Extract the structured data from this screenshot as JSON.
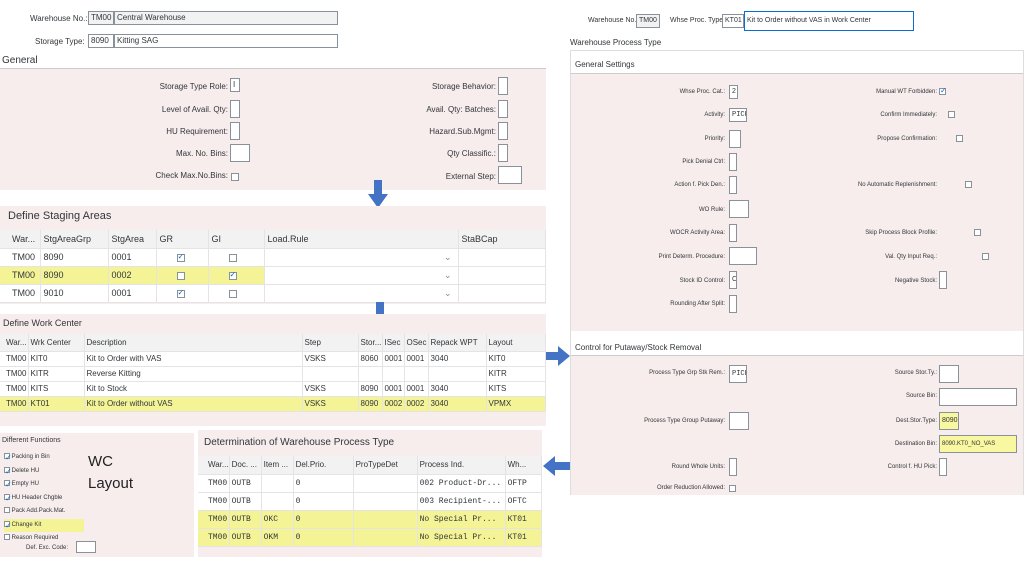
{
  "header": {
    "warehouse_label": "Warehouse No.:",
    "warehouse_code": "TM00",
    "warehouse_name": "Central Warehouse",
    "storage_type_label": "Storage Type:",
    "storage_type_code": "8090",
    "storage_type_name": "Kitting SAG"
  },
  "general": {
    "title": "General",
    "storage_type_role_label": "Storage Type Role:",
    "storage_type_role": "I",
    "level_avail_qty_label": "Level of Avail. Qty:",
    "hu_requirement_label": "HU Requirement:",
    "max_no_bins_label": "Max. No. Bins:",
    "check_max_bins_label": "Check Max.No.Bins:",
    "storage_behavior_label": "Storage Behavior:",
    "avail_qty_batches_label": "Avail. Qty: Batches:",
    "hazard_sub_label": "Hazard.Sub.Mgmt:",
    "qty_classific_label": "Qty Classific.:",
    "external_step_label": "External Step:"
  },
  "staging": {
    "title": "Define Staging Areas",
    "columns": [
      "War...",
      "StgAreaGrp",
      "StgArea",
      "GR",
      "GI",
      "Load.Rule",
      "StaBCap"
    ],
    "rows": [
      {
        "war": "TM00",
        "grp": "8090",
        "area": "0001",
        "gr": true,
        "gi": false
      },
      {
        "war": "TM00",
        "grp": "8090",
        "area": "0002",
        "gr": false,
        "gi": true
      },
      {
        "war": "TM00",
        "grp": "9010",
        "area": "0001",
        "gr": true,
        "gi": false
      }
    ]
  },
  "work_center": {
    "title": "Define Work Center",
    "columns": [
      "War...",
      "Wrk Center",
      "Description",
      "Step",
      "Stor...",
      "ISec",
      "OSec",
      "Repack WPT",
      "Layout"
    ],
    "rows": [
      {
        "war": "TM00",
        "wc": "KIT0",
        "desc": "Kit to Order with VAS",
        "step": "VSKS",
        "stor": "8060",
        "isec": "0001",
        "osec": "0001",
        "repack": "3040",
        "layout": "KIT0"
      },
      {
        "war": "TM00",
        "wc": "KITR",
        "desc": "Reverse Kitting",
        "step": "",
        "stor": "",
        "isec": "",
        "osec": "",
        "repack": "",
        "layout": "KITR"
      },
      {
        "war": "TM00",
        "wc": "KITS",
        "desc": "Kit to Stock",
        "step": "VSKS",
        "stor": "8090",
        "isec": "0001",
        "osec": "0001",
        "repack": "3040",
        "layout": "KITS"
      },
      {
        "war": "TM00",
        "wc": "KT01",
        "desc": "Kit to Order without VAS",
        "step": "VSKS",
        "stor": "8090",
        "isec": "0002",
        "osec": "0002",
        "repack": "3040",
        "layout": "VPMX"
      }
    ]
  },
  "diff_functions": {
    "title": "Different Functions",
    "items": [
      {
        "label": "Packing in Bin",
        "checked": true
      },
      {
        "label": "Delete HU",
        "checked": true
      },
      {
        "label": "Empty HU",
        "checked": true
      },
      {
        "label": "HU Header Chgble",
        "checked": true
      },
      {
        "label": "Pack Add.Pack.Mat.",
        "checked": false
      },
      {
        "label": "Change Kit",
        "checked": true
      },
      {
        "label": "Reason Required",
        "checked": false
      }
    ],
    "def_exc_label": "Def. Exc. Code:"
  },
  "wc_layout_label_1": "WC",
  "wc_layout_label_2": "Layout",
  "det_wpt": {
    "title": "Determination of Warehouse Process Type",
    "columns": [
      "War...",
      "Doc. ...",
      "Item ...",
      "Del.Prio.",
      "ProTypeDet",
      "Process Ind.",
      "Wh..."
    ],
    "rows": [
      {
        "war": "TM00",
        "doc": "OUTB",
        "item": "",
        "prio": "0",
        "det": "",
        "ind": "002 Product-Dr...",
        "wh": "OFTP"
      },
      {
        "war": "TM00",
        "doc": "OUTB",
        "item": "",
        "prio": "0",
        "det": "",
        "ind": "003 Recipient-...",
        "wh": "OFTC"
      },
      {
        "war": "TM00",
        "doc": "OUTB",
        "item": "OKC",
        "prio": "0",
        "det": "",
        "ind": "No Special Pr...",
        "wh": "KT01"
      },
      {
        "war": "TM00",
        "doc": "OUTB",
        "item": "OKM",
        "prio": "0",
        "det": "",
        "ind": "No Special Pr...",
        "wh": "KT01"
      }
    ]
  },
  "right": {
    "warehouse_label": "Warehouse No.:",
    "warehouse_code": "TM00",
    "wpt_label": "Whse Proc. Type:",
    "wpt_code": "KT01",
    "wpt_desc": "Kit to Order without VAS in Work Center",
    "section_title": "Warehouse Process Type",
    "general_title": "General Settings",
    "whse_proc_cat_label": "Whse Proc. Cat.:",
    "whse_proc_cat": "2",
    "activity_label": "Activity:",
    "activity": "PICK",
    "priority_label": "Priority:",
    "pick_denial_label": "Pick Denial Ctrl:",
    "action_pick_den_label": "Action f. Pick Den.:",
    "wo_rule_label": "WO Rule:",
    "wocr_label": "WOCR Activity Area:",
    "print_determ_label": "Print Determ. Procedure:",
    "stock_id_label": "Stock ID Control:",
    "stock_id": "C",
    "rounding_label": "Rounding After Split:",
    "manual_wt_label": "Manual WT Forbidden:",
    "confirm_imm_label": "Confirm Immediately:",
    "propose_conf_label": "Propose Confirmation:",
    "no_auto_repl_label": "No Automatic Replenishment:",
    "skip_block_label": "Skip Process Block Profile:",
    "val_qty_label": "Val. Qty Input Req.:",
    "neg_stock_label": "Negative Stock:",
    "control_title": "Control for Putaway/Stock Removal",
    "ptg_stk_rem_label": "Process Type Grp Stk Rem.:",
    "ptg_stk_rem": "PICK",
    "ptg_putaway_label": "Process Type Group Putaway:",
    "round_whole_label": "Round Whole Units:",
    "order_red_label": "Order Reduction Allowed:",
    "src_stor_type_label": "Source Stor.Ty.:",
    "src_bin_label": "Source Bin:",
    "dest_stor_type_label": "Dest.Stor.Type:",
    "dest_stor_type": "8090",
    "dest_bin_label": "Destination Bin:",
    "dest_bin": "8090.KT0_NO_VAS",
    "control_hu_pick_label": "Control f. HU Pick:"
  }
}
